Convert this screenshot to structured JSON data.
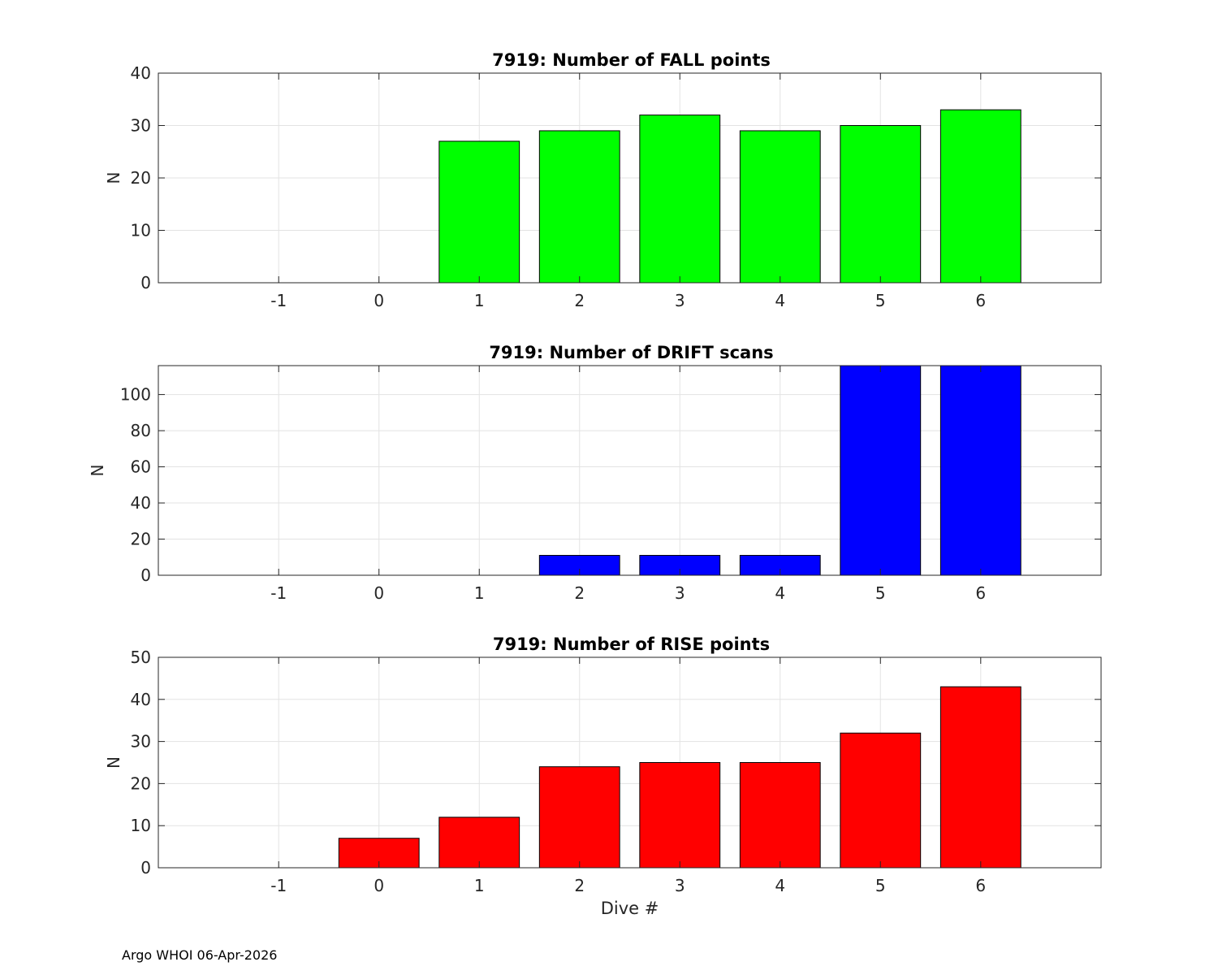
{
  "footer": "Argo WHOI 06-Apr-2026",
  "chart_data": [
    {
      "type": "bar",
      "title": "7919: Number of FALL points",
      "xlabel": "",
      "ylabel": "N",
      "color": "#00ff00",
      "categories": [
        "-1",
        "0",
        "1",
        "2",
        "3",
        "4",
        "5",
        "6"
      ],
      "x": [
        -1,
        0,
        1,
        2,
        3,
        4,
        5,
        6
      ],
      "values": [
        0,
        0,
        27,
        29,
        32,
        29,
        30,
        33
      ],
      "xlim": [
        -2.2,
        7.2
      ],
      "ylim": [
        0,
        40
      ],
      "yticks": [
        0,
        10,
        20,
        30,
        40
      ],
      "grid": true
    },
    {
      "type": "bar",
      "title": "7919: Number of DRIFT scans",
      "xlabel": "",
      "ylabel": "N",
      "color": "#0000ff",
      "categories": [
        "-1",
        "0",
        "1",
        "2",
        "3",
        "4",
        "5",
        "6"
      ],
      "x": [
        -1,
        0,
        1,
        2,
        3,
        4,
        5,
        6
      ],
      "values": [
        0,
        0,
        0,
        11,
        11,
        11,
        116,
        116
      ],
      "xlim": [
        -2.2,
        7.2
      ],
      "ylim": [
        0,
        116
      ],
      "yticks": [
        0,
        20,
        40,
        60,
        80,
        100
      ],
      "grid": true
    },
    {
      "type": "bar",
      "title": "7919: Number of RISE points",
      "xlabel": "Dive #",
      "ylabel": "N",
      "color": "#ff0000",
      "categories": [
        "-1",
        "0",
        "1",
        "2",
        "3",
        "4",
        "5",
        "6"
      ],
      "x": [
        -1,
        0,
        1,
        2,
        3,
        4,
        5,
        6
      ],
      "values": [
        0,
        7,
        12,
        24,
        25,
        25,
        32,
        43
      ],
      "xlim": [
        -2.2,
        7.2
      ],
      "ylim": [
        0,
        50
      ],
      "yticks": [
        0,
        10,
        20,
        30,
        40,
        50
      ],
      "grid": true
    }
  ]
}
